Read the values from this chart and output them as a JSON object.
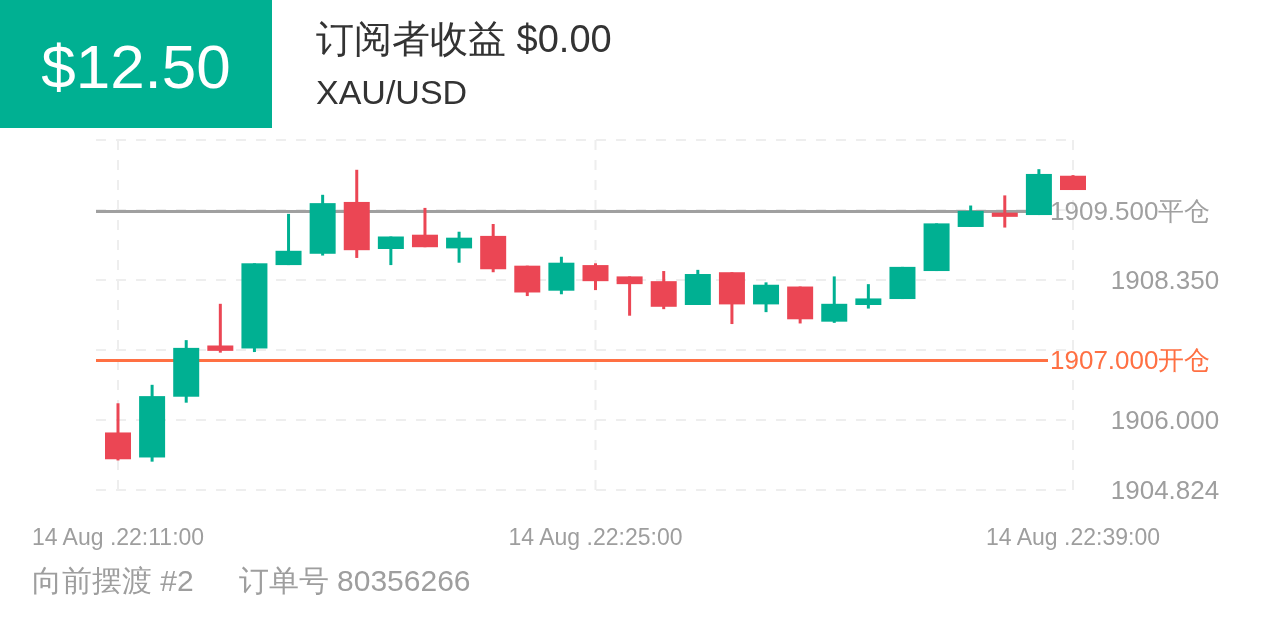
{
  "chart_data": {
    "type": "candlestick",
    "title": "订阅者收益 $0.00",
    "subtitle": "XAU/USD",
    "annotations": [
      "$12.50",
      "向前摆渡 #2",
      "订单号 80356266"
    ],
    "categories": [
      "14 Aug .22:11:00",
      null,
      null,
      null,
      null,
      null,
      null,
      null,
      null,
      null,
      null,
      null,
      null,
      null,
      "14 Aug .22:25:00",
      null,
      null,
      null,
      null,
      null,
      null,
      null,
      null,
      null,
      null,
      null,
      null,
      null,
      "14 Aug .22:39:00"
    ],
    "ohlc": [
      [
        1905.79,
        1906.28,
        1905.32,
        1905.34
      ],
      [
        1905.37,
        1906.59,
        1905.3,
        1906.4
      ],
      [
        1906.39,
        1907.34,
        1906.29,
        1907.21
      ],
      [
        1907.25,
        1907.95,
        1907.13,
        1907.16
      ],
      [
        1907.2,
        1908.63,
        1907.14,
        1908.63
      ],
      [
        1908.6,
        1909.46,
        1908.6,
        1908.84
      ],
      [
        1908.79,
        1909.78,
        1908.76,
        1909.64
      ],
      [
        1909.66,
        1910.2,
        1908.72,
        1908.85
      ],
      [
        1908.87,
        1909.08,
        1908.6,
        1909.08
      ],
      [
        1909.11,
        1909.56,
        1908.9,
        1908.9
      ],
      [
        1908.88,
        1909.16,
        1908.64,
        1909.06
      ],
      [
        1909.09,
        1909.29,
        1908.48,
        1908.53
      ],
      [
        1908.59,
        1908.59,
        1908.08,
        1908.14
      ],
      [
        1908.17,
        1908.74,
        1908.11,
        1908.64
      ],
      [
        1908.6,
        1908.63,
        1908.18,
        1908.33
      ],
      [
        1908.41,
        1908.41,
        1907.75,
        1908.28
      ],
      [
        1908.33,
        1908.5,
        1907.86,
        1907.9
      ],
      [
        1907.93,
        1908.52,
        1907.93,
        1908.45
      ],
      [
        1908.48,
        1908.48,
        1907.61,
        1907.94
      ],
      [
        1907.94,
        1908.31,
        1907.81,
        1908.27
      ],
      [
        1908.24,
        1908.24,
        1907.62,
        1907.69
      ],
      [
        1907.65,
        1908.41,
        1907.63,
        1907.95
      ],
      [
        1907.93,
        1908.28,
        1907.87,
        1908.04
      ],
      [
        1908.03,
        1908.57,
        1908.03,
        1908.57
      ],
      [
        1908.5,
        1909.3,
        1908.5,
        1909.3
      ],
      [
        1909.24,
        1909.6,
        1909.24,
        1909.51
      ],
      [
        1909.48,
        1909.77,
        1909.23,
        1909.41
      ],
      [
        1909.44,
        1910.21,
        1909.44,
        1910.13
      ],
      [
        1910.1,
        1910.11,
        1909.86,
        1909.86
      ]
    ],
    "colors": [
      "#eb4654",
      "#00b092",
      "#00b092",
      "#eb4654",
      "#00b092",
      "#00b092",
      "#00b092",
      "#eb4654",
      "#00b092",
      "#eb4654",
      "#00b092",
      "#eb4654",
      "#eb4654",
      "#00b092",
      "#eb4654",
      "#eb4654",
      "#eb4654",
      "#00b092",
      "#eb4654",
      "#00b092",
      "#eb4654",
      "#00b092",
      "#00b092",
      "#00b092",
      "#00b092",
      "#00b092",
      "#eb4654",
      "#00b092",
      "#eb4654"
    ],
    "ylim": [
      1904.824,
      1910.7
    ],
    "yticks": [
      1904.824,
      {
        "value": 1906,
        "label": "1906.000"
      },
      {
        "value": 1907.175,
        "label": null
      },
      {
        "value": 1908.35,
        "label": "1908.350"
      },
      {
        "value": 1909.525,
        "label": null
      },
      {
        "value": 1910.7,
        "label": null
      }
    ],
    "ref_lines": [
      {
        "axis": "y",
        "value": 1909.5,
        "label": "1909.500平仓",
        "color": "#a0a0a0"
      },
      {
        "axis": "y",
        "value": 1907.0,
        "label": "1907.000开仓",
        "color": "#ff7043"
      }
    ],
    "grid": true
  }
}
